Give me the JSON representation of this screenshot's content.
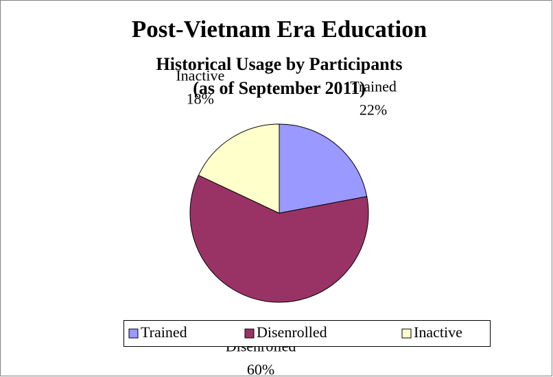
{
  "chart_data": {
    "type": "pie",
    "title": "Post-Vietnam Era Education",
    "subtitle": [
      "Historical Usage by Participants",
      "(as of September 2011)"
    ],
    "categories": [
      "Trained",
      "Disenrolled",
      "Inactive"
    ],
    "values": [
      22,
      60,
      18
    ],
    "value_labels": [
      "22%",
      "60%",
      "18%"
    ],
    "colors": [
      "#9999ff",
      "#993366",
      "#ffffcc"
    ],
    "legend": "bottom"
  }
}
